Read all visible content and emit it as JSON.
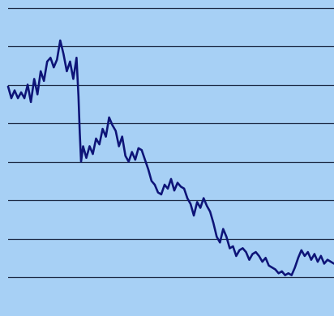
{
  "chart_data": {
    "type": "line",
    "title": "",
    "xlabel": "",
    "ylabel": "",
    "grid": true,
    "legend": "none",
    "xlim": [
      0,
      100
    ],
    "ylim": [
      0,
      8
    ],
    "gridlines_y": [
      0.8,
      1.8,
      2.8,
      3.8,
      4.8,
      5.8,
      6.8,
      7.8
    ],
    "colors": {
      "background": "#a7d0f5",
      "gridline": "#1c2a45",
      "series": "#0e1478"
    },
    "series": [
      {
        "x": [
          0,
          1,
          2,
          3,
          4,
          5,
          6,
          7,
          8,
          9,
          10,
          11,
          12,
          13,
          14,
          15,
          16,
          17,
          18,
          19,
          20,
          21,
          21.6,
          22,
          22.4,
          23,
          24,
          25,
          26,
          27,
          28,
          29,
          30,
          31,
          32,
          33,
          34,
          35,
          36,
          37,
          38,
          39,
          40,
          41,
          42,
          43,
          44,
          45,
          46,
          47,
          48,
          49,
          50,
          51,
          52,
          53,
          54,
          55,
          56,
          57,
          58,
          59,
          60,
          61,
          62,
          63,
          64,
          65,
          66,
          67,
          68,
          69,
          70,
          71,
          72,
          73,
          74,
          75,
          76,
          77,
          78,
          79,
          80,
          81,
          82,
          83,
          84,
          85,
          86,
          87,
          88,
          89,
          90,
          91,
          92,
          93,
          94,
          95,
          96,
          97,
          98,
          99,
          100
        ],
        "values": [
          5.75,
          5.45,
          5.65,
          5.45,
          5.6,
          5.45,
          5.8,
          5.35,
          5.95,
          5.55,
          6.15,
          5.9,
          6.4,
          6.5,
          6.25,
          6.45,
          6.95,
          6.6,
          6.15,
          6.4,
          5.95,
          6.5,
          5.5,
          4.55,
          3.8,
          4.2,
          3.9,
          4.2,
          4.0,
          4.4,
          4.25,
          4.65,
          4.45,
          4.95,
          4.75,
          4.6,
          4.2,
          4.45,
          3.95,
          3.8,
          4.05,
          3.85,
          4.15,
          4.1,
          3.85,
          3.6,
          3.3,
          3.2,
          3.0,
          2.95,
          3.2,
          3.1,
          3.35,
          3.05,
          3.25,
          3.15,
          3.1,
          2.85,
          2.7,
          2.4,
          2.75,
          2.6,
          2.85,
          2.65,
          2.5,
          2.2,
          1.85,
          1.7,
          2.05,
          1.85,
          1.55,
          1.6,
          1.35,
          1.5,
          1.55,
          1.45,
          1.25,
          1.4,
          1.45,
          1.35,
          1.2,
          1.3,
          1.1,
          1.05,
          1.0,
          0.9,
          0.95,
          0.85,
          0.9,
          0.85,
          1.05,
          1.3,
          1.5,
          1.35,
          1.45,
          1.25,
          1.4,
          1.2,
          1.35,
          1.15,
          1.25,
          1.2,
          1.15
        ]
      }
    ]
  }
}
